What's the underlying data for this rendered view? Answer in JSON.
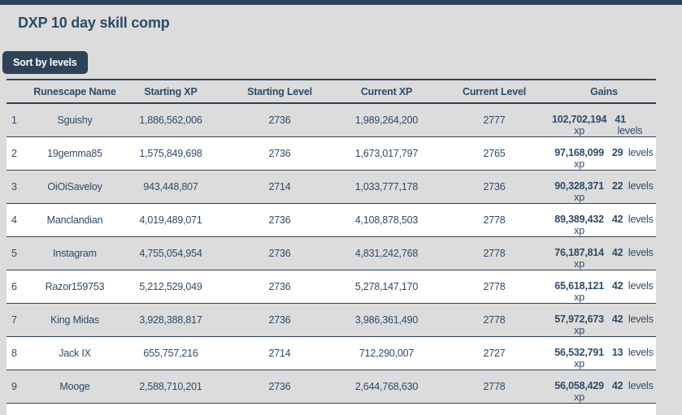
{
  "title": "DXP 10 day skill comp",
  "button_label": "Sort by levels",
  "colors": {
    "accent": "#2f4358",
    "text": "#2e4a68",
    "background": "#dcdcdc",
    "row_alt": "#ffffff"
  },
  "table": {
    "headers": [
      "",
      "Runescape Name",
      "Starting XP",
      "Starting Level",
      "Current XP",
      "Current Level",
      "Gains"
    ],
    "xp_unit": "xp",
    "levels_unit": "levels",
    "rows": [
      {
        "rank": "1",
        "name": "Sguishy",
        "starting_xp": "1,886,562,006",
        "starting_level": "2736",
        "current_xp": "1,989,264,200",
        "current_level": "2777",
        "gains_xp": "102,702,194",
        "gains_levels": "41"
      },
      {
        "rank": "2",
        "name": "19gemma85",
        "starting_xp": "1,575,849,698",
        "starting_level": "2736",
        "current_xp": "1,673,017,797",
        "current_level": "2765",
        "gains_xp": "97,168,099",
        "gains_levels": "29"
      },
      {
        "rank": "3",
        "name": "OiOiSaveloy",
        "starting_xp": "943,448,807",
        "starting_level": "2714",
        "current_xp": "1,033,777,178",
        "current_level": "2736",
        "gains_xp": "90,328,371",
        "gains_levels": "22"
      },
      {
        "rank": "4",
        "name": "Manclandian",
        "starting_xp": "4,019,489,071",
        "starting_level": "2736",
        "current_xp": "4,108,878,503",
        "current_level": "2778",
        "gains_xp": "89,389,432",
        "gains_levels": "42"
      },
      {
        "rank": "5",
        "name": "Instagram",
        "starting_xp": "4,755,054,954",
        "starting_level": "2736",
        "current_xp": "4,831,242,768",
        "current_level": "2778",
        "gains_xp": "76,187,814",
        "gains_levels": "42"
      },
      {
        "rank": "6",
        "name": "Razor159753",
        "starting_xp": "5,212,529,049",
        "starting_level": "2736",
        "current_xp": "5,278,147,170",
        "current_level": "2778",
        "gains_xp": "65,618,121",
        "gains_levels": "42"
      },
      {
        "rank": "7",
        "name": "King Midas",
        "starting_xp": "3,928,388,817",
        "starting_level": "2736",
        "current_xp": "3,986,361,490",
        "current_level": "2778",
        "gains_xp": "57,972,673",
        "gains_levels": "42"
      },
      {
        "rank": "8",
        "name": "Jack IX",
        "starting_xp": "655,757,216",
        "starting_level": "2714",
        "current_xp": "712,290,007",
        "current_level": "2727",
        "gains_xp": "56,532,791",
        "gains_levels": "13"
      },
      {
        "rank": "9",
        "name": "Mooge",
        "starting_xp": "2,588,710,201",
        "starting_level": "2736",
        "current_xp": "2,644,768,630",
        "current_level": "2778",
        "gains_xp": "56,058,429",
        "gains_levels": "42"
      }
    ]
  }
}
